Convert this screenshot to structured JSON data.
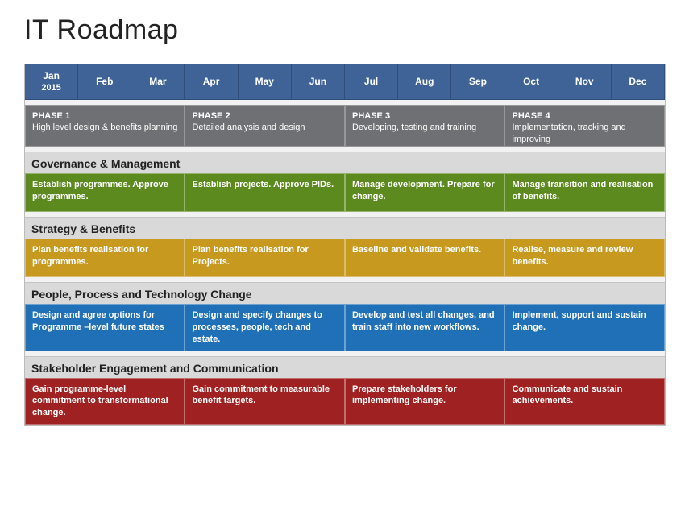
{
  "title": "IT Roadmap",
  "months": [
    "Jan",
    "Feb",
    "Mar",
    "Apr",
    "May",
    "Jun",
    "Jul",
    "Aug",
    "Sep",
    "Oct",
    "Nov",
    "Dec"
  ],
  "year_under_first_month": "2015",
  "colors": {
    "month_bg": "#3f6396",
    "month_border": "#2f4f7a",
    "phase_bg": "#6f7073",
    "phase_border": "#979797",
    "section_bg": "#d9d9d9",
    "governance": "#5c8a1f",
    "strategy": "#c7991f",
    "people": "#1f70b7",
    "stakeholder": "#a02121",
    "page_bg": "#ffffff",
    "grid_bg": "#e6e6e6"
  },
  "phases": [
    {
      "name": "PHASE 1",
      "desc": "High level design & benefits planning",
      "span": 3
    },
    {
      "name": "PHASE 2",
      "desc": "Detailed analysis and design",
      "span": 3
    },
    {
      "name": "PHASE 3",
      "desc": "Developing, testing and training",
      "span": 3
    },
    {
      "name": "PHASE 4",
      "desc": "Implementation, tracking and improving",
      "span": 3
    }
  ],
  "sections": [
    {
      "title": "Governance & Management",
      "color_key": "governance",
      "tasks": [
        "Establish programmes. Approve programmes.",
        "Establish projects. Approve PIDs.",
        "Manage development. Prepare for change.",
        "Manage transition and realisation of benefits."
      ]
    },
    {
      "title": "Strategy & Benefits",
      "color_key": "strategy",
      "tasks": [
        "Plan benefits realisation for programmes.",
        "Plan benefits realisation for Projects.",
        "Baseline and validate benefits.",
        "Realise, measure and review benefits."
      ]
    },
    {
      "title": "People, Process and Technology Change",
      "color_key": "people",
      "tasks": [
        "Design and agree options for Programme –level future states",
        "Design and specify changes to processes, people, tech and estate.",
        "Develop and test all changes, and train staff into new workflows.",
        "Implement, support and sustain change."
      ]
    },
    {
      "title": "Stakeholder Engagement and Communication",
      "color_key": "stakeholder",
      "tasks": [
        "Gain programme-level commitment to transformational change.",
        "Gain commitment to measurable benefit targets.",
        "Prepare stakeholders for implementing change.",
        "Communicate and sustain achievements."
      ]
    }
  ]
}
